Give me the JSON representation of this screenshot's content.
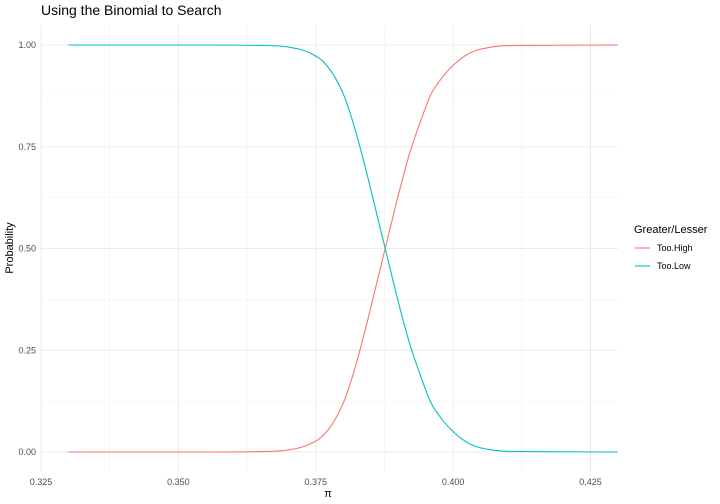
{
  "chart_data": {
    "type": "line",
    "title": "Using the Binomial to Search",
    "xlabel": "π",
    "ylabel": "Probability",
    "xlim": [
      0.325,
      0.43
    ],
    "ylim": [
      0,
      1
    ],
    "x_ticks": [
      "0.325",
      "0.350",
      "0.375",
      "0.400",
      "0.425"
    ],
    "y_ticks": [
      "0.00",
      "0.25",
      "0.50",
      "0.75",
      "1.00"
    ],
    "grid": true,
    "legend": {
      "title": "Greater/Lesser",
      "placement": "right",
      "entries": [
        "Too.High",
        "Too.Low"
      ]
    },
    "series": [
      {
        "name": "Too.High",
        "color": "#F8766D",
        "x": [
          0.33,
          0.355,
          0.365,
          0.37,
          0.374,
          0.377,
          0.38,
          0.382,
          0.384,
          0.386,
          0.388,
          0.39,
          0.392,
          0.394,
          0.396,
          0.398,
          0.4,
          0.403,
          0.407,
          0.412,
          0.43
        ],
        "y": [
          0.0,
          0.0,
          0.001,
          0.005,
          0.02,
          0.05,
          0.12,
          0.2,
          0.3,
          0.41,
          0.52,
          0.63,
          0.73,
          0.81,
          0.88,
          0.92,
          0.95,
          0.98,
          0.995,
          0.999,
          1.0
        ]
      },
      {
        "name": "Too.Low",
        "color": "#00BFC4",
        "x": [
          0.33,
          0.355,
          0.365,
          0.37,
          0.374,
          0.377,
          0.38,
          0.382,
          0.384,
          0.386,
          0.388,
          0.39,
          0.392,
          0.394,
          0.396,
          0.398,
          0.4,
          0.403,
          0.407,
          0.412,
          0.43
        ],
        "y": [
          1.0,
          1.0,
          0.999,
          0.995,
          0.98,
          0.95,
          0.88,
          0.8,
          0.7,
          0.59,
          0.48,
          0.37,
          0.27,
          0.19,
          0.12,
          0.08,
          0.05,
          0.02,
          0.005,
          0.001,
          0.0
        ]
      }
    ]
  }
}
